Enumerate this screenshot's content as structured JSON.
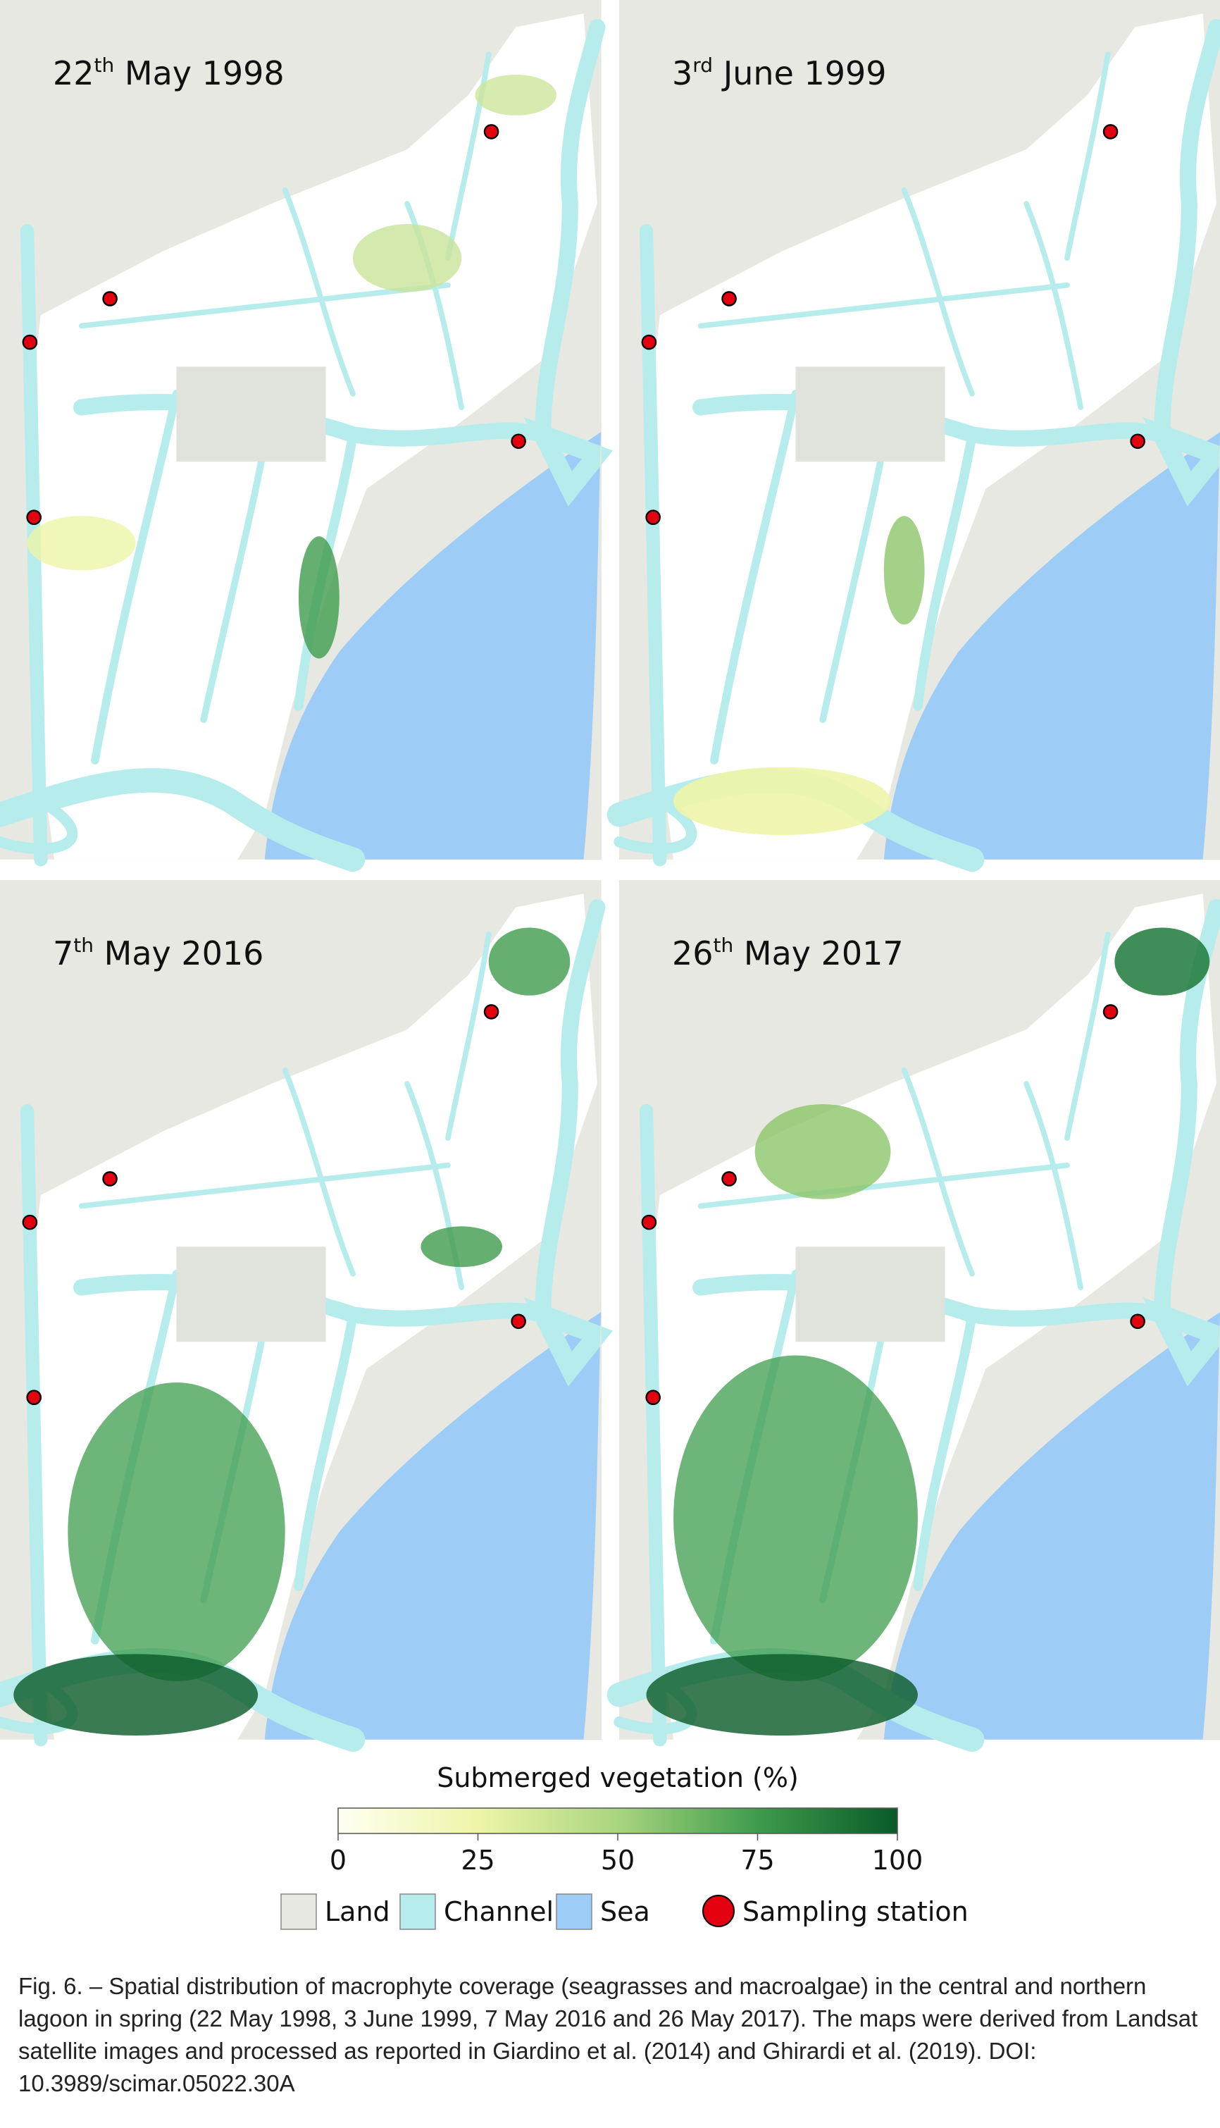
{
  "panels": [
    {
      "day": "22",
      "suffix": "th",
      "rest": " May 1998"
    },
    {
      "day": "3",
      "suffix": "rd",
      "rest": " June 1999"
    },
    {
      "day": "7",
      "suffix": "th",
      "rest": " May 2016"
    },
    {
      "day": "26",
      "suffix": "th",
      "rest": " May 2017"
    }
  ],
  "colorbar": {
    "title": "Submerged vegetation (%)",
    "range": [
      0,
      100
    ],
    "ticks": [
      0,
      25,
      50,
      75,
      100
    ]
  },
  "legend": [
    "Land",
    "Channel",
    "Sea",
    "Sampling station"
  ],
  "caption": "Fig. 6. – Spatial distribution of macrophyte coverage (seagrasses and macroalgae) in the central and northern lagoon in spring (22 May 1998, 3 June 1999, 7 May 2016 and 26 May 2017). The maps were derived from Landsat satellite images and processed as reported in Giardino et al. (2014) and Ghirardi et al. (2019). DOI: 10.3989/scimar.05022.30A"
}
